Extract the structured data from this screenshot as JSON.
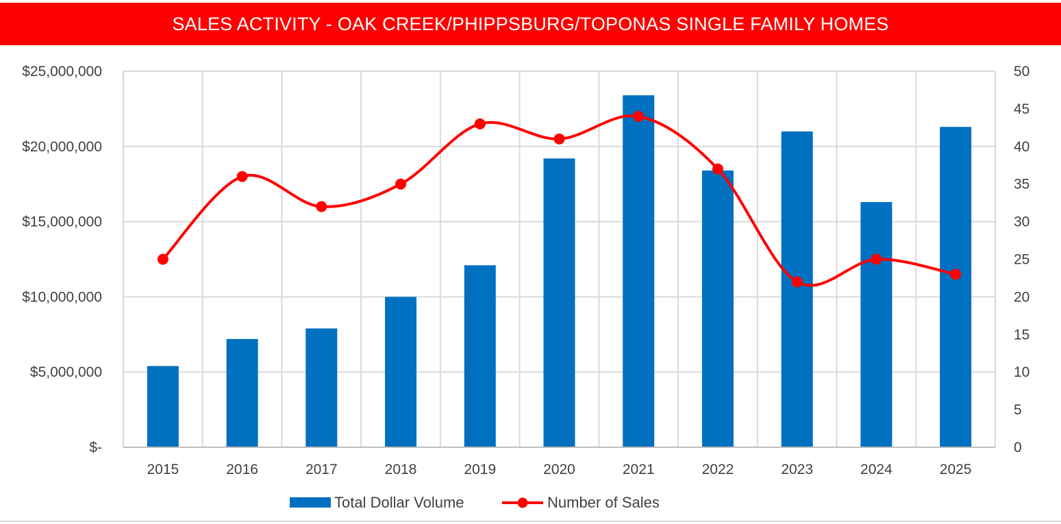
{
  "chart_data": {
    "type": "bar+line",
    "title": "SALES ACTIVITY - OAK CREEK/PHIPPSBURG/TOPONAS SINGLE FAMILY HOMES",
    "categories": [
      "2015",
      "2016",
      "2017",
      "2018",
      "2019",
      "2020",
      "2021",
      "2022",
      "2023",
      "2024",
      "2025"
    ],
    "series": [
      {
        "name": "Total Dollar Volume",
        "type": "bar",
        "axis": "left",
        "color": "#0070c0",
        "values": [
          5400000,
          7200000,
          7900000,
          10000000,
          12100000,
          19200000,
          23400000,
          18400000,
          21000000,
          16300000,
          21300000
        ]
      },
      {
        "name": "Number of Sales",
        "type": "line",
        "axis": "right",
        "color": "#ff0000",
        "smooth": true,
        "values": [
          25,
          36,
          32,
          35,
          43,
          41,
          44,
          37,
          22,
          25,
          23
        ]
      }
    ],
    "left_axis": {
      "range": [
        0,
        25000000
      ],
      "ticks": [
        0,
        5000000,
        10000000,
        15000000,
        20000000,
        25000000
      ],
      "tick_labels": [
        "$-",
        "$5,000,000",
        "$10,000,000",
        "$15,000,000",
        "$20,000,000",
        "$25,000,000"
      ]
    },
    "right_axis": {
      "range": [
        0,
        50
      ],
      "ticks": [
        0,
        5,
        10,
        15,
        20,
        25,
        30,
        35,
        40,
        45,
        50
      ],
      "tick_labels": [
        "0",
        "5",
        "10",
        "15",
        "20",
        "25",
        "30",
        "35",
        "40",
        "45",
        "50"
      ]
    },
    "grid": true,
    "legend_position": "bottom"
  },
  "colors": {
    "title_bg": "#ff0000",
    "bar": "#0070c0",
    "line": "#ff0000",
    "grid": "#d9d9d9"
  }
}
